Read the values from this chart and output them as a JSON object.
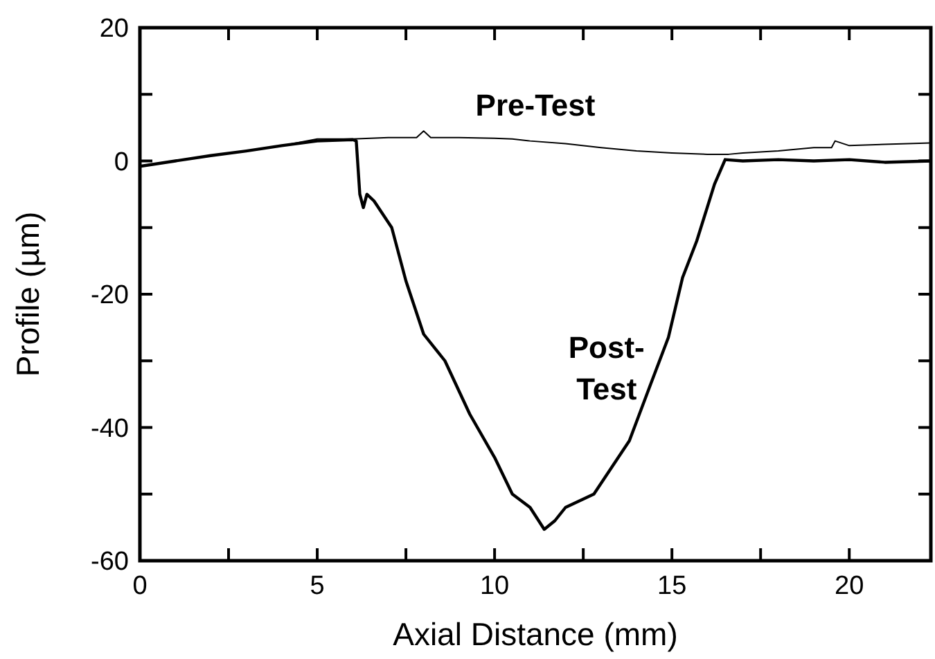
{
  "chart_data": {
    "type": "line",
    "xlabel": "Axial Distance (mm)",
    "ylabel": "Profile (µm)",
    "xlim": [
      0,
      22.3
    ],
    "xticks": [
      0,
      {
        "value": 2.5,
        "label": null
      },
      5,
      {
        "value": 7.5,
        "label": null
      },
      10,
      {
        "value": 12.5,
        "label": null
      },
      15,
      {
        "value": 17.5,
        "label": null
      },
      20
    ],
    "ylim": [
      -60,
      20
    ],
    "yticks": [
      -60,
      {
        "value": -50,
        "label": null
      },
      -40,
      {
        "value": -30,
        "label": null
      },
      -20,
      {
        "value": -10,
        "label": null
      },
      0,
      {
        "value": 10,
        "label": null
      },
      20
    ],
    "grid": false,
    "marker": "none",
    "line_style": "solid",
    "series": [
      {
        "name": "Pre-Test",
        "color": "#000000",
        "x": [
          0,
          1,
          2,
          3,
          4,
          5,
          6,
          7,
          7.8,
          8,
          8.2,
          9,
          10,
          10.5,
          11,
          12,
          13,
          14,
          15,
          16,
          16.6,
          17,
          18,
          19,
          19.5,
          19.6,
          20,
          21,
          22.3
        ],
        "values": [
          -0.8,
          0,
          0.8,
          1.5,
          2.3,
          3.3,
          3.3,
          3.5,
          3.5,
          4.5,
          3.5,
          3.5,
          3.4,
          3.3,
          3,
          2.6,
          2,
          1.5,
          1.2,
          1,
          1,
          1.2,
          1.5,
          2,
          2,
          3,
          2.3,
          2.5,
          2.7
        ]
      },
      {
        "name": "Post-Test",
        "color": "#000000",
        "x": [
          0,
          1,
          2,
          3,
          4,
          5,
          6,
          6.1,
          6.2,
          6.3,
          6.4,
          6.6,
          7.1,
          7.5,
          8,
          8.6,
          9.3,
          10,
          10.5,
          11,
          11.4,
          11.7,
          12,
          12.8,
          13.3,
          13.8,
          14.4,
          14.9,
          15.3,
          15.7,
          16.2,
          16.5,
          17,
          18,
          19,
          20,
          21,
          22.3
        ],
        "values": [
          -0.8,
          0,
          0.8,
          1.5,
          2.3,
          3,
          3.2,
          3,
          -5,
          -7,
          -5,
          -6,
          -10,
          -18,
          -26,
          -30,
          -38,
          -44.5,
          -50,
          -52,
          -55.3,
          -54,
          -52,
          -50,
          -46,
          -42,
          -33.5,
          -26.5,
          -17.5,
          -12,
          -3.5,
          0.2,
          0,
          0.2,
          0,
          0.2,
          -0.2,
          0
        ]
      }
    ]
  }
}
